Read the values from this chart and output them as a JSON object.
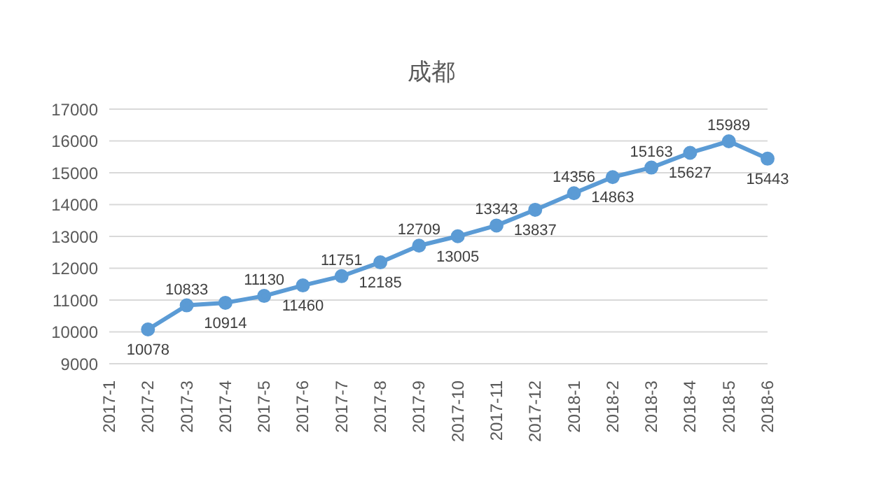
{
  "chart_data": {
    "type": "line",
    "title": "成都",
    "categories": [
      "2017-1",
      "2017-2",
      "2017-3",
      "2017-4",
      "2017-5",
      "2017-6",
      "2017-7",
      "2017-8",
      "2017-9",
      "2017-10",
      "2017-11",
      "2017-12",
      "2018-1",
      "2018-2",
      "2018-3",
      "2018-4",
      "2018-5",
      "2018-6"
    ],
    "series": [
      {
        "color": "#5b9bd5",
        "values": [
          null,
          10078,
          10833,
          10914,
          11130,
          11460,
          11751,
          12185,
          12709,
          13005,
          13343,
          13837,
          14356,
          14863,
          15163,
          15627,
          15989,
          15443
        ]
      }
    ],
    "ylim": [
      9000,
      17000
    ],
    "yticks": [
      9000,
      10000,
      11000,
      12000,
      13000,
      14000,
      15000,
      16000,
      17000
    ],
    "grid": "y",
    "marker": "circle",
    "data_labels": true,
    "legend": false
  }
}
